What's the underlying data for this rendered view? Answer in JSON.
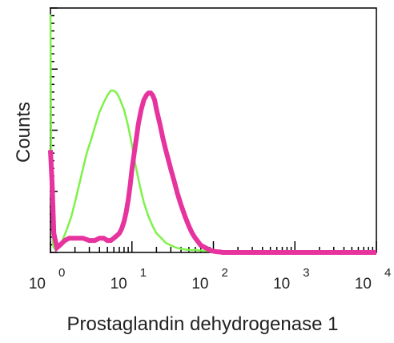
{
  "chart_data": {
    "type": "line",
    "xlabel": "Prostaglandin dehydrogenase 1",
    "ylabel": "Counts",
    "x_scale": "log",
    "xlim": [
      1,
      10000
    ],
    "ylim": [
      0,
      100
    ],
    "grid": false,
    "legend": "none",
    "x_ticks": [
      {
        "base": "10",
        "exp": "0"
      },
      {
        "base": "10",
        "exp": "1"
      },
      {
        "base": "10",
        "exp": "2"
      },
      {
        "base": "10",
        "exp": "3"
      },
      {
        "base": "10",
        "exp": "4"
      }
    ],
    "series": [
      {
        "color": "#7ef24a",
        "stroke": "thin",
        "x": [
          1,
          1.02,
          1.05,
          1.08,
          1.1,
          1.15,
          1.25,
          1.4,
          1.6,
          1.8,
          2,
          2.2,
          2.5,
          2.8,
          3.2,
          3.6,
          4,
          4.5,
          5,
          5.5,
          6,
          6.5,
          7,
          8,
          9,
          10,
          11,
          12.5,
          14,
          16,
          18,
          20,
          23,
          26,
          30,
          35,
          40,
          50,
          60,
          70,
          80,
          90,
          100,
          110,
          120,
          10000
        ],
        "y": [
          100,
          45,
          18,
          3,
          2,
          1,
          2,
          5,
          10,
          15,
          21,
          27,
          35,
          42,
          48,
          54,
          59,
          63,
          66,
          68,
          68,
          67,
          65,
          60,
          53,
          45,
          37,
          28,
          21,
          15,
          11,
          8,
          6,
          4,
          3,
          2,
          1.5,
          1,
          1,
          0.8,
          0.7,
          0.5,
          0.3,
          0.1,
          0,
          0
        ]
      },
      {
        "color": "#e6339e",
        "stroke": "thick",
        "x": [
          1,
          1.05,
          1.1,
          1.2,
          1.3,
          1.5,
          1.7,
          2,
          2.5,
          3,
          3.5,
          4,
          4.5,
          5,
          5.5,
          6,
          6.5,
          7,
          7.5,
          8,
          8.5,
          9,
          9.5,
          10,
          11,
          12,
          13,
          14,
          15,
          16,
          17,
          18,
          19,
          20,
          22,
          24,
          26,
          28,
          30,
          33,
          36,
          40,
          45,
          50,
          55,
          60,
          70,
          80,
          90,
          100,
          110,
          120,
          130,
          10000
        ],
        "y": [
          43,
          28,
          8,
          2,
          3,
          5,
          6,
          6,
          6,
          5,
          5,
          6,
          6,
          5,
          5,
          6,
          7,
          8,
          10,
          13,
          17,
          22,
          28,
          35,
          45,
          54,
          60,
          64,
          66,
          67,
          67,
          66,
          64,
          60,
          54,
          48,
          43,
          39,
          35,
          30,
          25,
          20,
          15,
          11,
          8,
          6,
          3,
          2,
          1,
          0.5,
          0.3,
          0.2,
          0,
          0
        ]
      }
    ]
  }
}
